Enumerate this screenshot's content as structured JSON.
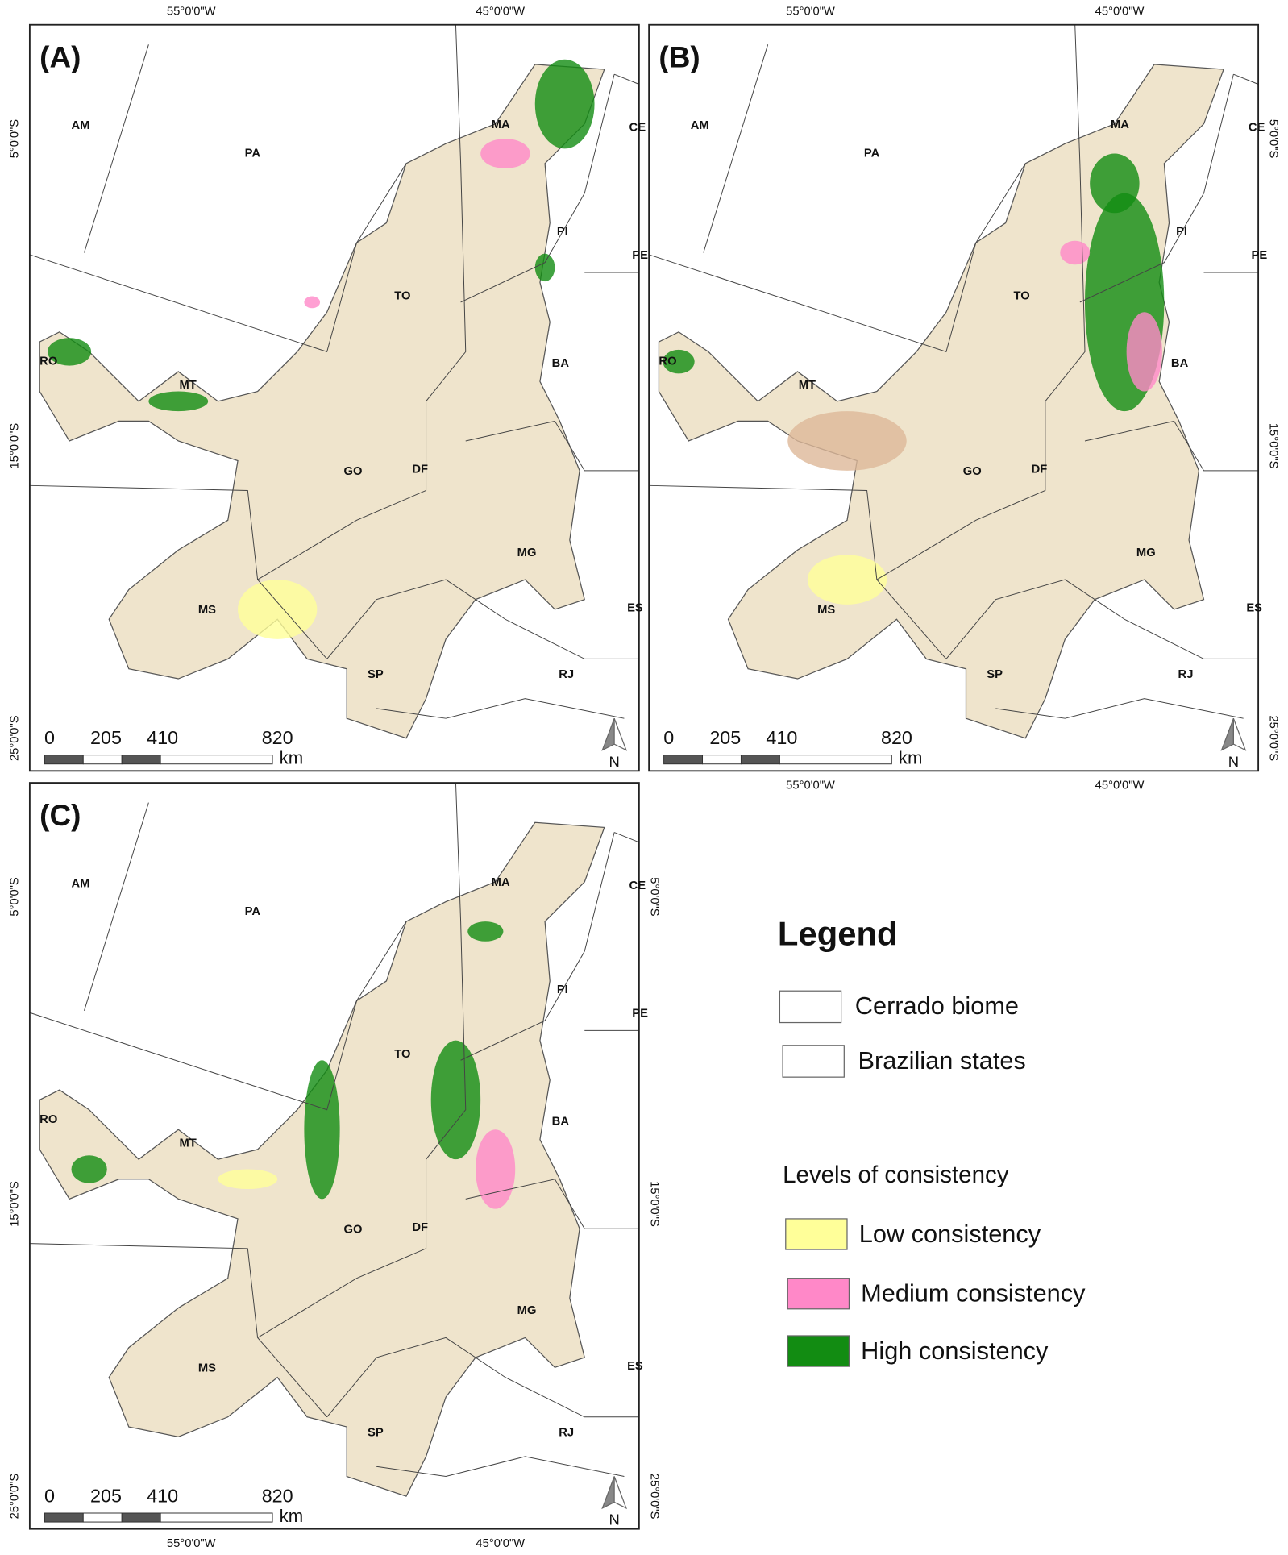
{
  "panels": [
    {
      "label": "(A)",
      "top_ticks": [
        "55°0'0\"W",
        "45°0'0\"W"
      ],
      "left_ticks": [
        "5°0'0\"S",
        "15°0'0\"S",
        "25°0'0\"S"
      ],
      "states": [
        "AM",
        "PA",
        "MA",
        "CE",
        "PI",
        "PE",
        "TO",
        "RO",
        "MT",
        "BA",
        "GO",
        "DF",
        "MG",
        "MS",
        "ES",
        "SP",
        "RJ"
      ],
      "scale_bar": {
        "ticks": [
          "0",
          "205",
          "410",
          "820"
        ],
        "unit": "km"
      },
      "north": "N"
    },
    {
      "label": "(B)",
      "top_ticks": [
        "55°0'0\"W",
        "45°0'0\"W"
      ],
      "bottom_ticks": [
        "55°0'0\"W",
        "45°0'0\"W"
      ],
      "right_ticks": [
        "5°0'0\"S",
        "15°0'0\"S",
        "25°0'0\"S"
      ],
      "states": [
        "AM",
        "PA",
        "MA",
        "CE",
        "PI",
        "PE",
        "TO",
        "RO",
        "MT",
        "BA",
        "GO",
        "DF",
        "MG",
        "MS",
        "ES",
        "SP",
        "RJ"
      ],
      "scale_bar": {
        "ticks": [
          "0",
          "205",
          "410",
          "820"
        ],
        "unit": "km"
      },
      "north": "N"
    },
    {
      "label": "(C)",
      "bottom_ticks": [
        "55°0'0\"W",
        "45°0'0\"W"
      ],
      "left_ticks": [
        "5°0'0\"S",
        "15°0'0\"S",
        "25°0'0\"S"
      ],
      "right_ticks": [
        "5°0'0\"S",
        "15°0'0\"S",
        "25°0'0\"S"
      ],
      "states": [
        "AM",
        "PA",
        "MA",
        "CE",
        "PI",
        "PE",
        "TO",
        "RO",
        "MT",
        "BA",
        "GO",
        "DF",
        "MG",
        "MS",
        "ES",
        "SP",
        "RJ"
      ],
      "scale_bar": {
        "ticks": [
          "0",
          "205",
          "410",
          "820"
        ],
        "unit": "km"
      },
      "north": "N"
    }
  ],
  "legend": {
    "title": "Legend",
    "items": [
      {
        "label": "Cerrado biome",
        "color": "#ffffff"
      },
      {
        "label": "Brazilian states",
        "color": "#ffffff"
      }
    ],
    "levels_title": "Levels of consistency",
    "levels": [
      {
        "label": "Low consistency",
        "color": "#ffff99"
      },
      {
        "label": "Medium consistency",
        "color": "#ff88c8"
      },
      {
        "label": "High consistency",
        "color": "#128c12"
      }
    ]
  }
}
